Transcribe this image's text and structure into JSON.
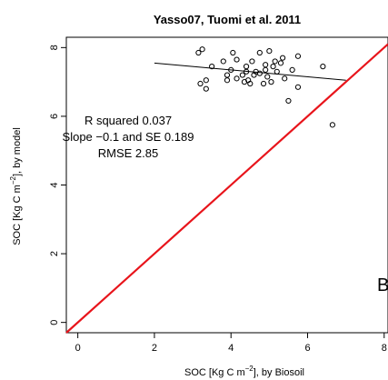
{
  "chart_data": {
    "type": "scatter",
    "title": "Yasso07, Tuomi et al. 2011",
    "xlabel": {
      "prefix": "SOC [Kg C m",
      "sup": "−2",
      "suffix": "], by Biosoil"
    },
    "ylabel": {
      "prefix": "SOC [Kg C m",
      "sup": "−2",
      "suffix": "], by model"
    },
    "xlim": [
      -0.3,
      8.1
    ],
    "ylim": [
      -0.3,
      8.3
    ],
    "xticks": [
      0,
      2,
      4,
      6,
      8
    ],
    "yticks": [
      0,
      2,
      4,
      6,
      8
    ],
    "grid": false,
    "points": [
      {
        "x": 3.15,
        "y": 7.85
      },
      {
        "x": 3.25,
        "y": 7.95
      },
      {
        "x": 3.2,
        "y": 6.95
      },
      {
        "x": 3.35,
        "y": 6.8
      },
      {
        "x": 3.35,
        "y": 7.05
      },
      {
        "x": 3.5,
        "y": 7.45
      },
      {
        "x": 3.8,
        "y": 7.6
      },
      {
        "x": 3.9,
        "y": 7.05
      },
      {
        "x": 3.9,
        "y": 7.2
      },
      {
        "x": 4.0,
        "y": 7.35
      },
      {
        "x": 4.05,
        "y": 7.85
      },
      {
        "x": 4.15,
        "y": 7.65
      },
      {
        "x": 4.15,
        "y": 7.1
      },
      {
        "x": 4.3,
        "y": 7.2
      },
      {
        "x": 4.35,
        "y": 7.0
      },
      {
        "x": 4.4,
        "y": 7.3
      },
      {
        "x": 4.4,
        "y": 7.45
      },
      {
        "x": 4.45,
        "y": 7.05
      },
      {
        "x": 4.5,
        "y": 6.95
      },
      {
        "x": 4.55,
        "y": 7.6
      },
      {
        "x": 4.6,
        "y": 7.2
      },
      {
        "x": 4.65,
        "y": 7.3
      },
      {
        "x": 4.75,
        "y": 7.85
      },
      {
        "x": 4.75,
        "y": 7.25
      },
      {
        "x": 4.85,
        "y": 6.95
      },
      {
        "x": 4.9,
        "y": 7.35
      },
      {
        "x": 4.9,
        "y": 7.5
      },
      {
        "x": 4.95,
        "y": 7.15
      },
      {
        "x": 5.0,
        "y": 7.9
      },
      {
        "x": 5.05,
        "y": 7.0
      },
      {
        "x": 5.1,
        "y": 7.45
      },
      {
        "x": 5.15,
        "y": 7.6
      },
      {
        "x": 5.2,
        "y": 7.3
      },
      {
        "x": 5.3,
        "y": 7.55
      },
      {
        "x": 5.35,
        "y": 7.7
      },
      {
        "x": 5.4,
        "y": 7.1
      },
      {
        "x": 5.5,
        "y": 6.45
      },
      {
        "x": 5.6,
        "y": 7.35
      },
      {
        "x": 5.75,
        "y": 6.85
      },
      {
        "x": 5.75,
        "y": 7.75
      },
      {
        "x": 6.4,
        "y": 7.45
      },
      {
        "x": 6.65,
        "y": 5.75
      }
    ],
    "regression_line": {
      "x": [
        2.0,
        7.0
      ],
      "y": [
        7.55,
        7.05
      ],
      "color": "#000000"
    },
    "one_to_one_line": {
      "x": [
        -0.3,
        8.1
      ],
      "y": [
        -0.3,
        8.1
      ],
      "color": "#e8141b"
    },
    "annotations": {
      "r_squared": "R squared 0.037",
      "slope": "Slope  −0.1  and SE  0.189",
      "rmse": "RMSE 2.85"
    },
    "panel_letter": "B"
  }
}
